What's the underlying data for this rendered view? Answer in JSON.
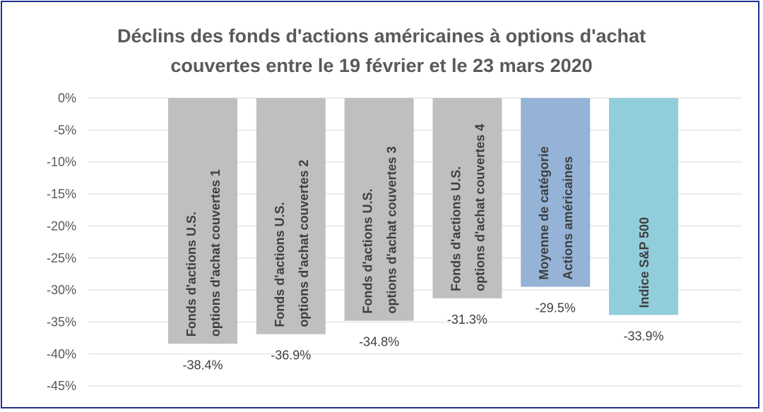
{
  "chart_data": {
    "type": "bar",
    "title": [
      "Déclins des fonds d'actions américaines à options d'achat",
      "couvertes entre le 19 février et le 23 mars 2020"
    ],
    "ylim": [
      -45,
      0
    ],
    "yticks": [
      0,
      -5,
      -10,
      -15,
      -20,
      -25,
      -30,
      -35,
      -40,
      -45
    ],
    "ytick_labels": [
      "0%",
      "-5%",
      "-10%",
      "-15%",
      "-20%",
      "-25%",
      "-30%",
      "-35%",
      "-40%",
      "-45%"
    ],
    "grid": true,
    "categories": [
      [
        "Fonds d'actions U.S.",
        "options d'achat couvertes 1"
      ],
      [
        "Fonds d'actions U.S.",
        "options d'achat couvertes 2"
      ],
      [
        "Fonds d'actions U.S.",
        "options d'achat couvertes 3"
      ],
      [
        "Fonds d'actions U.S.",
        "options d'achat couvertes 4"
      ],
      [
        "Moyenne de catégorie",
        "Actions américaines"
      ],
      [
        "Indice S&P 500"
      ]
    ],
    "values": [
      -38.4,
      -36.9,
      -34.8,
      -31.3,
      -29.5,
      -33.9
    ],
    "value_labels": [
      "-38.4%",
      "-36.9%",
      "-34.8%",
      "-31.3%",
      "-29.5%",
      "-33.9%"
    ],
    "colors": [
      "#bfbfbf",
      "#bfbfbf",
      "#bfbfbf",
      "#bfbfbf",
      "#95b3d7",
      "#92cddc"
    ]
  }
}
